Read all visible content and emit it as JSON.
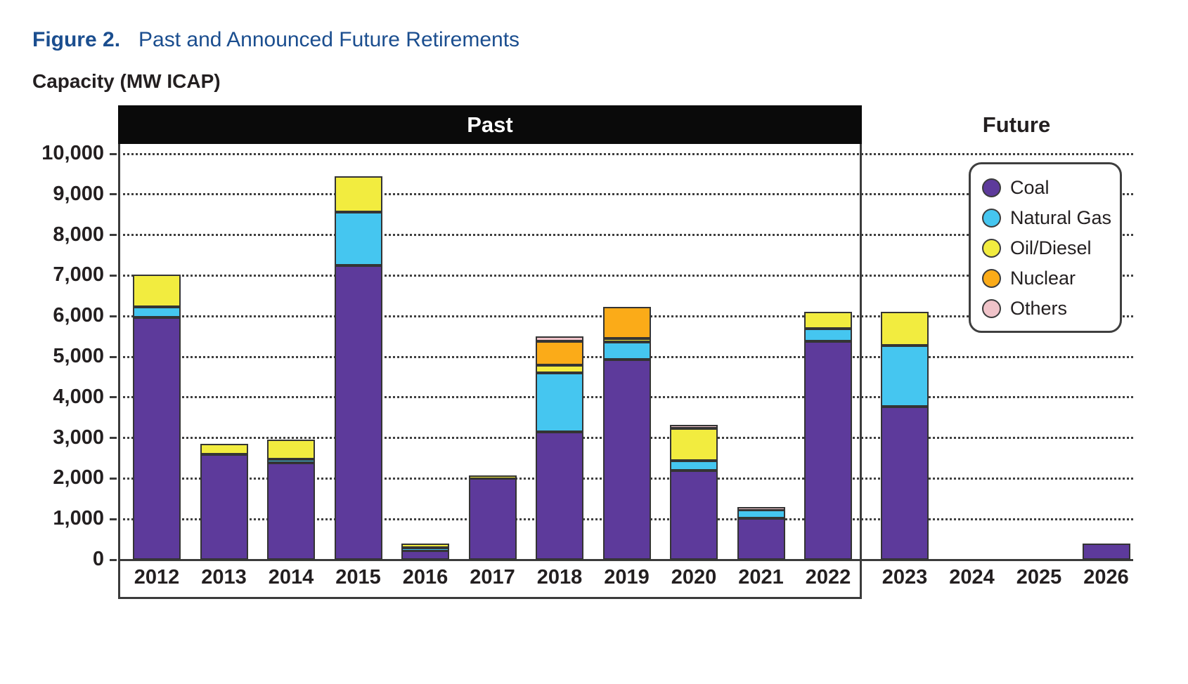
{
  "figure": {
    "label": "Figure 2.",
    "title": "Past and Announced Future Retirements"
  },
  "axis_title": "Capacity (MW ICAP)",
  "sections": {
    "past": "Past",
    "future": "Future"
  },
  "legend": {
    "items": [
      {
        "label": "Coal",
        "color": "#5d3a9b"
      },
      {
        "label": "Natural Gas",
        "color": "#45c6f0"
      },
      {
        "label": "Oil/Diesel",
        "color": "#f2ec3f"
      },
      {
        "label": "Nuclear",
        "color": "#fbab18"
      },
      {
        "label": "Others",
        "color": "#f0c3c9"
      }
    ]
  },
  "chart_data": {
    "type": "bar",
    "stacked": true,
    "title": "Past and Announced Future Retirements",
    "ylabel": "Capacity (MW ICAP)",
    "ylim": [
      0,
      10000
    ],
    "ytick_interval": 1000,
    "grid": "horizontal-dotted",
    "legend_position": "upper-right",
    "section_split": {
      "past_years": "2012-2022",
      "future_years": "2023-2026"
    },
    "categories": [
      "2012",
      "2013",
      "2014",
      "2015",
      "2016",
      "2017",
      "2018",
      "2019",
      "2020",
      "2021",
      "2022",
      "2023",
      "2024",
      "2025",
      "2026"
    ],
    "series": [
      {
        "name": "Coal",
        "color": "#5d3a9b",
        "values": [
          5970,
          2600,
          2380,
          7250,
          230,
          2000,
          3150,
          4930,
          2200,
          1020,
          5380,
          3780,
          0,
          0,
          400
        ]
      },
      {
        "name": "Natural Gas",
        "color": "#45c6f0",
        "values": [
          260,
          0,
          90,
          1320,
          60,
          0,
          1450,
          440,
          240,
          200,
          320,
          1490,
          0,
          0,
          0
        ]
      },
      {
        "name": "Oil/Diesel",
        "color": "#f2ec3f",
        "values": [
          790,
          250,
          480,
          880,
          110,
          80,
          190,
          80,
          790,
          0,
          400,
          830,
          0,
          0,
          0
        ]
      },
      {
        "name": "Nuclear",
        "color": "#fbab18",
        "values": [
          0,
          0,
          0,
          0,
          0,
          0,
          590,
          780,
          0,
          0,
          0,
          0,
          0,
          0,
          0
        ]
      },
      {
        "name": "Others",
        "color": "#f0c3c9",
        "values": [
          0,
          0,
          0,
          0,
          0,
          0,
          130,
          0,
          90,
          80,
          0,
          0,
          0,
          0,
          0
        ]
      }
    ],
    "totals": [
      7020,
      2850,
      2950,
      9450,
      400,
      2080,
      5510,
      6230,
      3320,
      1300,
      6100,
      6100,
      0,
      0,
      400
    ]
  }
}
